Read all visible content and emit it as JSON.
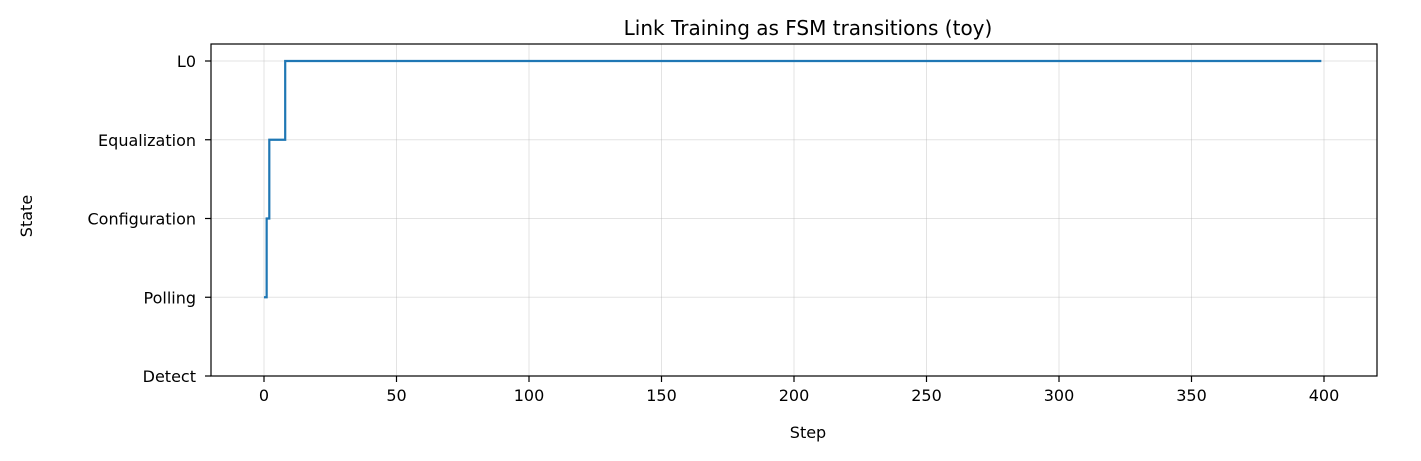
{
  "chart_data": {
    "type": "line",
    "drawstyle": "steps-post",
    "title": "Link Training as FSM transitions (toy)",
    "xlabel": "Step",
    "ylabel": "State",
    "xlim": [
      -20,
      420
    ],
    "ylim": [
      0,
      4
    ],
    "xticks": [
      0,
      50,
      100,
      150,
      200,
      250,
      300,
      350,
      400
    ],
    "yticks": [
      0,
      1,
      2,
      3,
      4
    ],
    "ytick_labels": [
      "Detect",
      "Polling",
      "Configuration",
      "Equalization",
      "L0"
    ],
    "grid": true,
    "series": [
      {
        "color": "#1f77b4",
        "x": [
          0,
          1,
          2,
          8,
          399
        ],
        "y": [
          1,
          2,
          3,
          4,
          4
        ]
      }
    ]
  }
}
